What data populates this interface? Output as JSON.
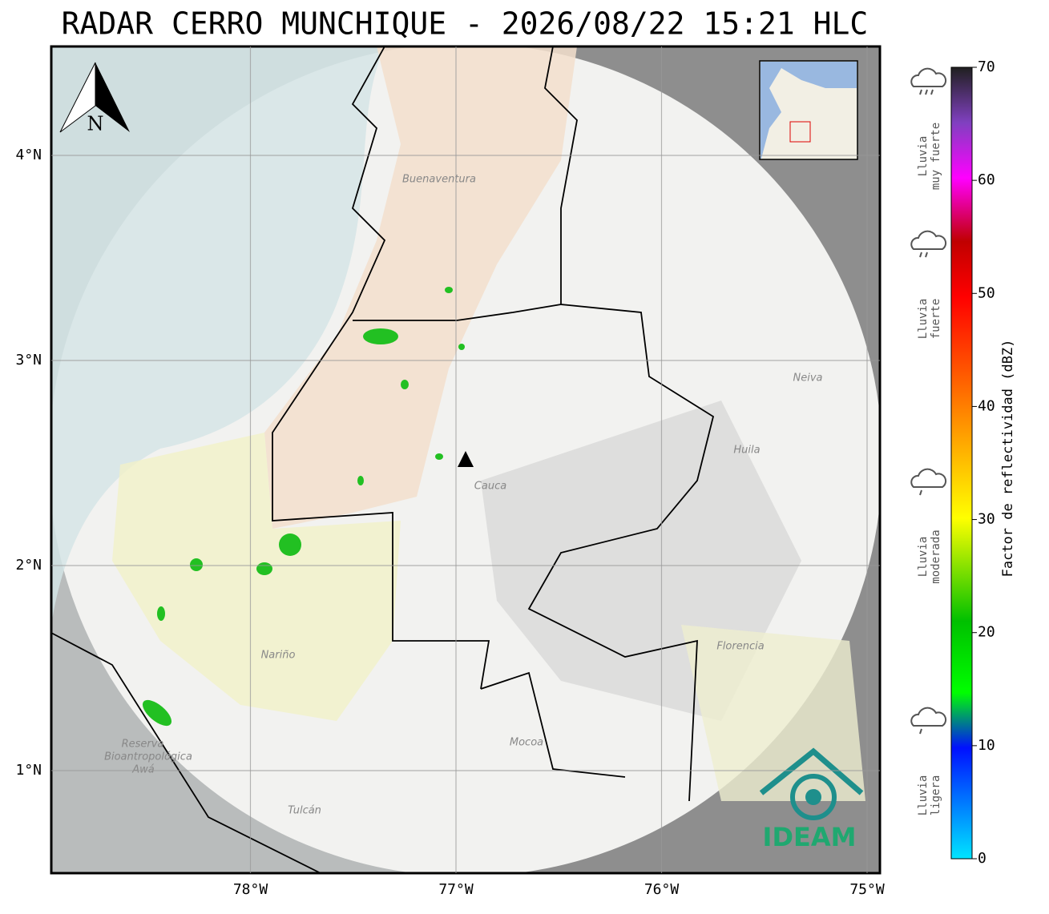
{
  "title": "RADAR CERRO MUNCHIQUE - 2026/08/22 15:21 HLC",
  "map": {
    "north_label": "N",
    "lon_ticks": [
      {
        "value": -78,
        "label": "78°W"
      },
      {
        "value": -77,
        "label": "77°W"
      },
      {
        "value": -76,
        "label": "76°W"
      },
      {
        "value": -75,
        "label": "75°W"
      }
    ],
    "lat_ticks": [
      {
        "value": 4,
        "label": "4°N"
      },
      {
        "value": 3,
        "label": "3°N"
      },
      {
        "value": 2,
        "label": "2°N"
      },
      {
        "value": 1,
        "label": "1°N"
      }
    ],
    "places": [
      "Buenaventura",
      "Cauca",
      "Huila",
      "Neiva",
      "Nariño",
      "Florencia",
      "Mocoa",
      "Reserva",
      "Bioantropológica",
      "Awá",
      "Tulcán"
    ],
    "logo": "IDEAM"
  },
  "colorbar": {
    "label": "Factor de reflectividad (dBZ)",
    "lim": [
      0,
      70
    ],
    "ticks": [
      0,
      10,
      20,
      30,
      40,
      50,
      60,
      70
    ],
    "levels": [
      {
        "lines": [
          "Lluvia",
          "muy fuerte"
        ]
      },
      {
        "lines": [
          "Lluvia",
          "fuerte"
        ]
      },
      {
        "lines": [
          "Lluvia",
          "moderada"
        ]
      },
      {
        "lines": [
          "Lluvia",
          "ligera"
        ]
      }
    ]
  }
}
